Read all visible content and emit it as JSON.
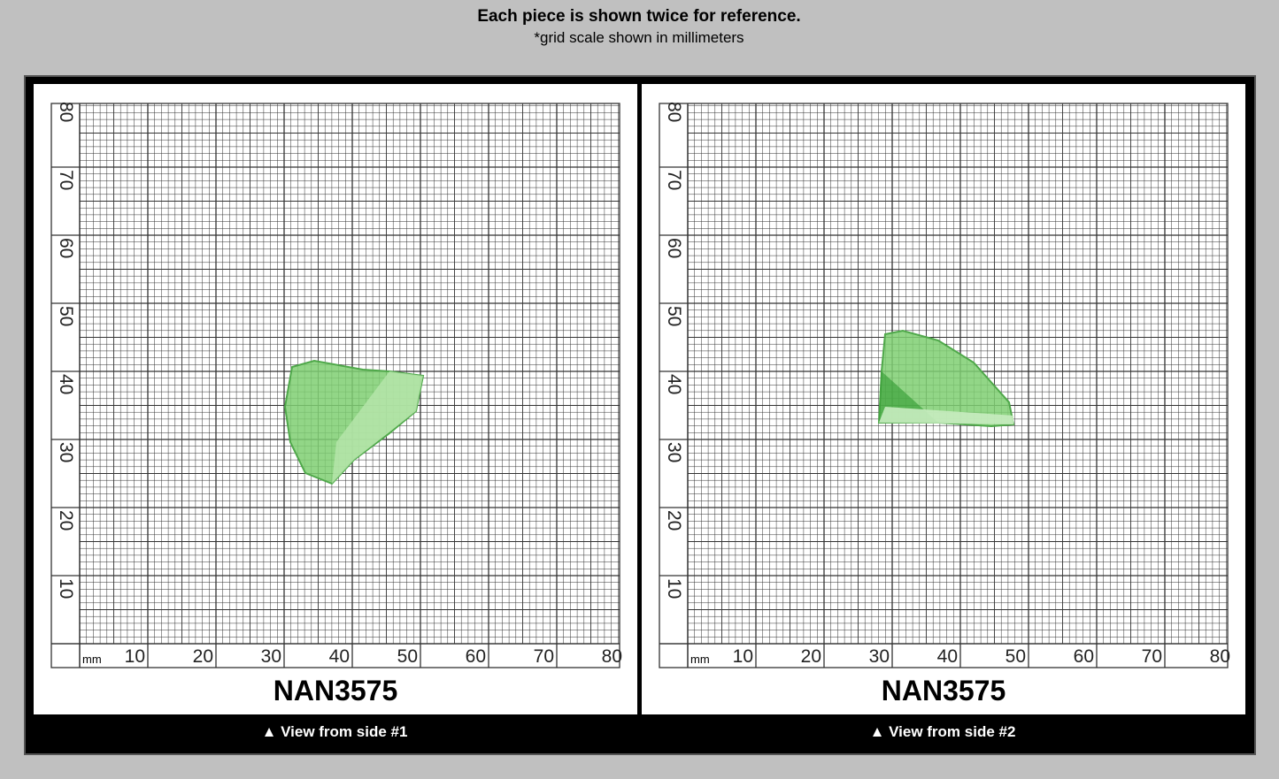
{
  "header": {
    "title": "Each piece is shown twice for reference.",
    "subtitle": "*grid scale shown in millimeters"
  },
  "panels": [
    {
      "code": "NAN3575",
      "caption": "▲ View from side #1",
      "unit": "mm",
      "x_labels": [
        "10",
        "20",
        "30",
        "40",
        "50",
        "60",
        "70",
        "80"
      ],
      "y_labels": [
        "10",
        "20",
        "30",
        "40",
        "50",
        "60",
        "70",
        "80"
      ]
    },
    {
      "code": "NAN3575",
      "caption": "▲ View from side #2",
      "unit": "mm",
      "x_labels": [
        "10",
        "20",
        "30",
        "40",
        "50",
        "60",
        "70",
        "80"
      ],
      "y_labels": [
        "10",
        "20",
        "30",
        "40",
        "50",
        "60",
        "70",
        "80"
      ]
    }
  ]
}
